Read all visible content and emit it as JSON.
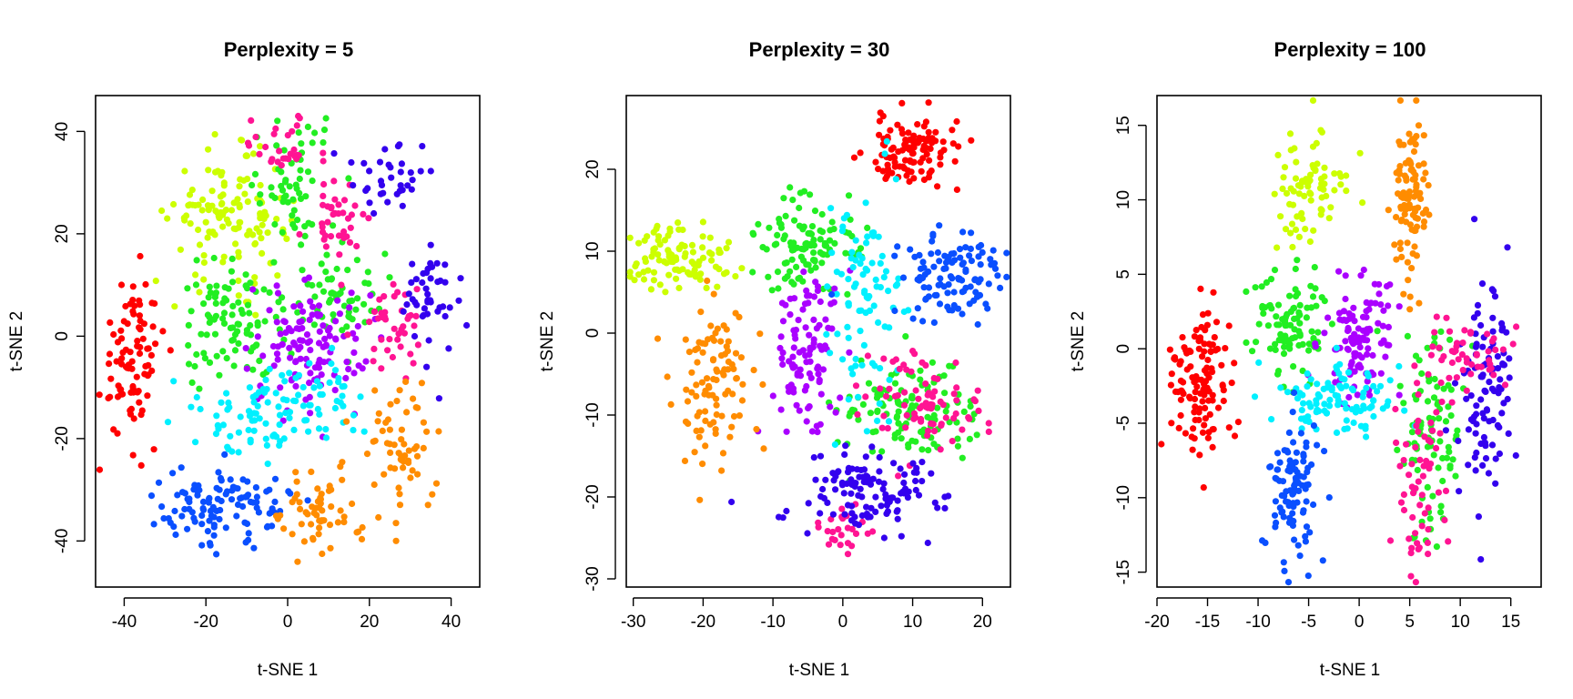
{
  "chart_data": [
    {
      "type": "scatter",
      "title": "Perplexity = 5",
      "xlabel": "t-SNE 1",
      "ylabel": "t-SNE 2",
      "xlim": [
        -47,
        47
      ],
      "ylim": [
        -49,
        47
      ],
      "xticks": [
        -40,
        -20,
        0,
        20,
        40
      ],
      "yticks": [
        -40,
        -20,
        0,
        20,
        40
      ],
      "grid": false,
      "legend": "none",
      "series": [
        {
          "color": "#ff0000",
          "clusters": [
            {
              "cx": -38,
              "cy": -4,
              "sx": 4,
              "sy": 8,
              "n": 90
            }
          ]
        },
        {
          "color": "#ccff00",
          "clusters": [
            {
              "cx": -14,
              "cy": 23,
              "sx": 7,
              "sy": 6,
              "n": 130
            }
          ]
        },
        {
          "color": "#22ee22",
          "clusters": [
            {
              "cx": -14,
              "cy": 2,
              "sx": 6,
              "sy": 6,
              "n": 90
            },
            {
              "cx": 2,
              "cy": 30,
              "sx": 6,
              "sy": 6,
              "n": 60
            },
            {
              "cx": 12,
              "cy": 8,
              "sx": 6,
              "sy": 5,
              "n": 60
            }
          ]
        },
        {
          "color": "#aa00ff",
          "clusters": [
            {
              "cx": 5,
              "cy": -2,
              "sx": 7,
              "sy": 6,
              "n": 120
            }
          ]
        },
        {
          "color": "#ff1493",
          "clusters": [
            {
              "cx": -2,
              "cy": 37,
              "sx": 5,
              "sy": 3,
              "n": 30
            },
            {
              "cx": 13,
              "cy": 22,
              "sx": 4,
              "sy": 4,
              "n": 40
            },
            {
              "cx": 25,
              "cy": 2,
              "sx": 4,
              "sy": 5,
              "n": 40
            }
          ]
        },
        {
          "color": "#3300ee",
          "clusters": [
            {
              "cx": 26,
              "cy": 32,
              "sx": 5,
              "sy": 4,
              "n": 35
            },
            {
              "cx": 36,
              "cy": 8,
              "sx": 4,
              "sy": 6,
              "n": 45
            }
          ]
        },
        {
          "color": "#00f0ff",
          "clusters": [
            {
              "cx": -7,
              "cy": -15,
              "sx": 7,
              "sy": 4,
              "n": 70
            },
            {
              "cx": 8,
              "cy": -13,
              "sx": 5,
              "sy": 4,
              "n": 40
            }
          ]
        },
        {
          "color": "#0a4fff",
          "clusters": [
            {
              "cx": -15,
              "cy": -33,
              "sx": 8,
              "sy": 4,
              "n": 110
            }
          ]
        },
        {
          "color": "#ff8c00",
          "clusters": [
            {
              "cx": 28,
              "cy": -22,
              "sx": 5,
              "sy": 6,
              "n": 60
            },
            {
              "cx": 8,
              "cy": -35,
              "sx": 5,
              "sy": 4,
              "n": 60
            }
          ]
        }
      ]
    },
    {
      "type": "scatter",
      "title": "Perplexity = 30",
      "xlabel": "t-SNE 1",
      "ylabel": "t-SNE 2",
      "xlim": [
        -31,
        24
      ],
      "ylim": [
        -31,
        29
      ],
      "xticks": [
        -30,
        -20,
        -10,
        0,
        10,
        20
      ],
      "yticks": [
        -30,
        -20,
        -10,
        0,
        10,
        20
      ],
      "grid": false,
      "legend": "none",
      "series": [
        {
          "color": "#ff0000",
          "clusters": [
            {
              "cx": 10,
              "cy": 22,
              "sx": 3.5,
              "sy": 2.3,
              "n": 110
            }
          ]
        },
        {
          "color": "#ccff00",
          "clusters": [
            {
              "cx": -23,
              "cy": 9,
              "sx": 3.5,
              "sy": 2.2,
              "n": 100
            }
          ]
        },
        {
          "color": "#22ee22",
          "clusters": [
            {
              "cx": -5,
              "cy": 11,
              "sx": 3.5,
              "sy": 3,
              "n": 110
            },
            {
              "cx": 9,
              "cy": -10,
              "sx": 5,
              "sy": 3,
              "n": 120
            }
          ]
        },
        {
          "color": "#aa00ff",
          "clusters": [
            {
              "cx": -5,
              "cy": -2,
              "sx": 2.5,
              "sy": 5,
              "n": 100
            }
          ]
        },
        {
          "color": "#00f0ff",
          "clusters": [
            {
              "cx": 3,
              "cy": 4,
              "sx": 2.5,
              "sy": 6,
              "n": 90
            }
          ]
        },
        {
          "color": "#0a4fff",
          "clusters": [
            {
              "cx": 16,
              "cy": 7,
              "sx": 4,
              "sy": 2.5,
              "n": 110
            }
          ]
        },
        {
          "color": "#ff8c00",
          "clusters": [
            {
              "cx": -19,
              "cy": -6,
              "sx": 3,
              "sy": 5,
              "n": 100
            }
          ]
        },
        {
          "color": "#ff1493",
          "clusters": [
            {
              "cx": 11,
              "cy": -9,
              "sx": 4,
              "sy": 3,
              "n": 80
            },
            {
              "cx": 0,
              "cy": -24,
              "sx": 2,
              "sy": 2,
              "n": 25
            }
          ]
        },
        {
          "color": "#3300ee",
          "clusters": [
            {
              "cx": 4,
              "cy": -20,
              "sx": 6,
              "sy": 2.5,
              "n": 120
            }
          ]
        }
      ]
    },
    {
      "type": "scatter",
      "title": "Perplexity = 100",
      "xlabel": "t-SNE 1",
      "ylabel": "t-SNE 2",
      "xlim": [
        -20,
        18
      ],
      "ylim": [
        -16,
        17
      ],
      "xticks": [
        -20,
        -15,
        -10,
        -5,
        0,
        5,
        10,
        15
      ],
      "yticks": [
        -15,
        -10,
        -5,
        0,
        5,
        10,
        15
      ],
      "grid": false,
      "legend": "none",
      "series": [
        {
          "color": "#ff0000",
          "clusters": [
            {
              "cx": -16,
              "cy": -2.5,
              "sx": 1.4,
              "sy": 2.4,
              "n": 120
            }
          ]
        },
        {
          "color": "#ccff00",
          "clusters": [
            {
              "cx": -5,
              "cy": 10.5,
              "sx": 1.8,
              "sy": 2.2,
              "n": 80
            }
          ]
        },
        {
          "color": "#ff8c00",
          "clusters": [
            {
              "cx": 5,
              "cy": 10,
              "sx": 0.9,
              "sy": 3.2,
              "n": 100
            }
          ]
        },
        {
          "color": "#22ee22",
          "clusters": [
            {
              "cx": -7,
              "cy": 1.5,
              "sx": 2,
              "sy": 2,
              "n": 100
            },
            {
              "cx": 7,
              "cy": -5,
              "sx": 1.6,
              "sy": 3.5,
              "n": 90
            }
          ]
        },
        {
          "color": "#aa00ff",
          "clusters": [
            {
              "cx": 0,
              "cy": 1,
              "sx": 2,
              "sy": 2,
              "n": 110
            }
          ]
        },
        {
          "color": "#00f0ff",
          "clusters": [
            {
              "cx": -2,
              "cy": -3.5,
              "sx": 3.2,
              "sy": 1.3,
              "n": 100
            }
          ]
        },
        {
          "color": "#0a4fff",
          "clusters": [
            {
              "cx": -6.5,
              "cy": -9.5,
              "sx": 1.3,
              "sy": 2.5,
              "n": 100
            }
          ]
        },
        {
          "color": "#3300ee",
          "clusters": [
            {
              "cx": 12.5,
              "cy": -3,
              "sx": 1.5,
              "sy": 4,
              "n": 100
            }
          ]
        },
        {
          "color": "#ff1493",
          "clusters": [
            {
              "cx": 11,
              "cy": -0.5,
              "sx": 2.5,
              "sy": 1.2,
              "n": 50
            },
            {
              "cx": 6,
              "cy": -9,
              "sx": 1.5,
              "sy": 3,
              "n": 60
            }
          ]
        }
      ]
    }
  ]
}
